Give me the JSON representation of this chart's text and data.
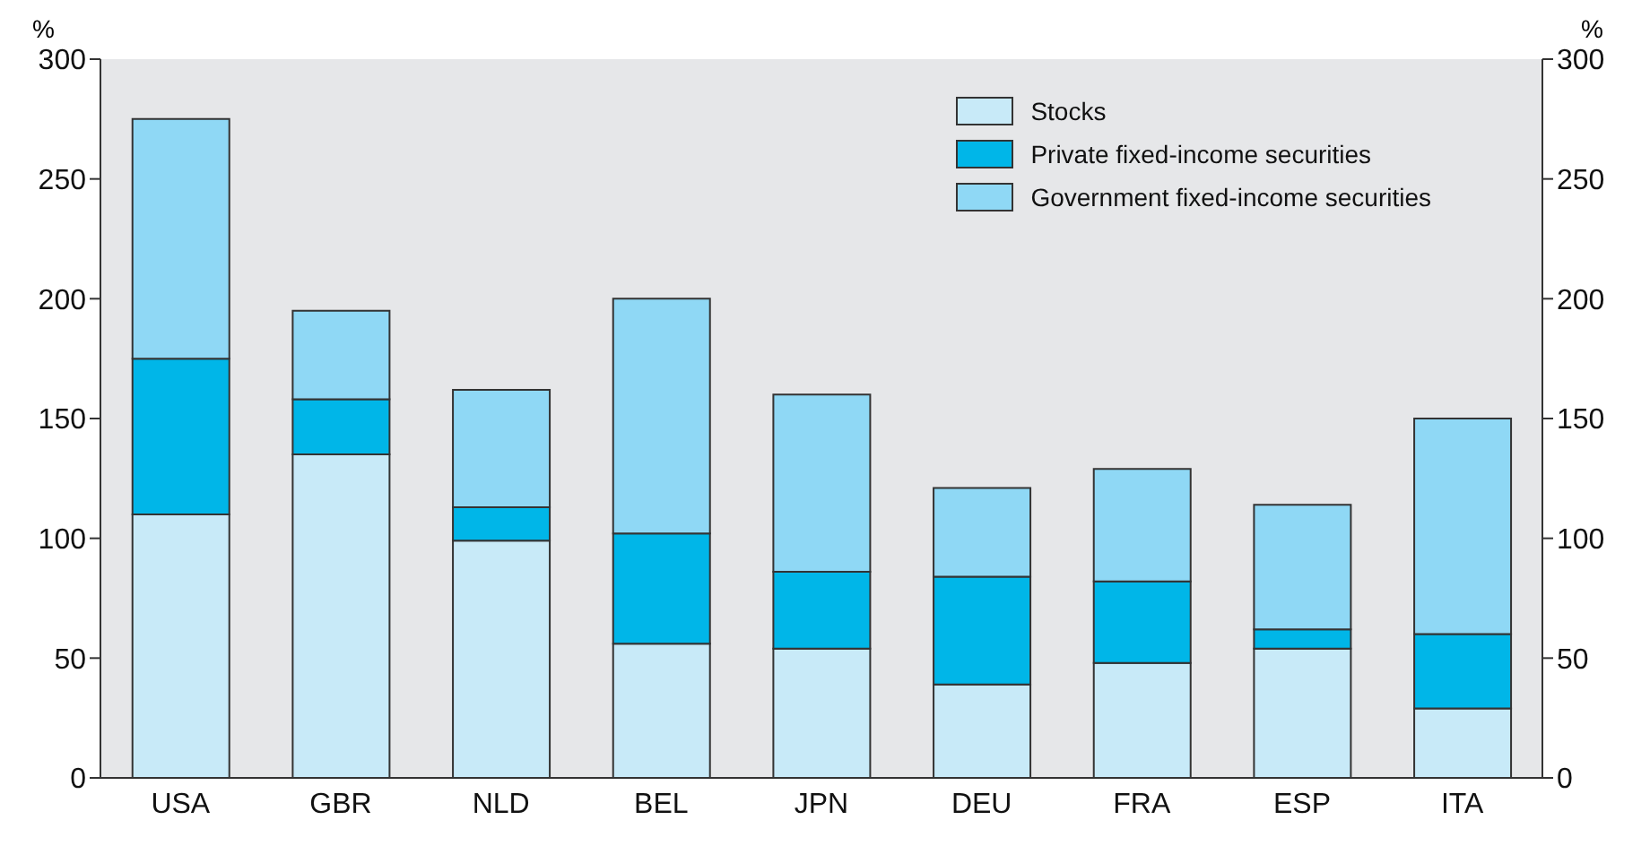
{
  "chart_data": {
    "type": "bar",
    "stacked": true,
    "ylabel": "%",
    "y2label": "%",
    "categories": [
      "USA",
      "GBR",
      "NLD",
      "BEL",
      "JPN",
      "DEU",
      "FRA",
      "ESP",
      "ITA"
    ],
    "series": [
      {
        "name": "Stocks",
        "color": "#c8eaf8",
        "values": [
          110,
          135,
          99,
          56,
          54,
          39,
          48,
          54,
          29
        ]
      },
      {
        "name": "Private fixed-income securities",
        "color": "#00b6e8",
        "values": [
          65,
          23,
          14,
          46,
          32,
          45,
          34,
          8,
          31
        ]
      },
      {
        "name": "Government fixed-income securities",
        "color": "#8fd8f5",
        "values": [
          100,
          37,
          49,
          98,
          74,
          37,
          47,
          52,
          90
        ]
      }
    ],
    "ylim": [
      0,
      300
    ],
    "yticks": [
      0,
      50,
      100,
      150,
      200,
      250,
      300
    ],
    "y2lim": [
      0,
      300
    ],
    "y2ticks": [
      0,
      50,
      100,
      150,
      200,
      250,
      300
    ],
    "grid": false,
    "legend": "top right"
  }
}
